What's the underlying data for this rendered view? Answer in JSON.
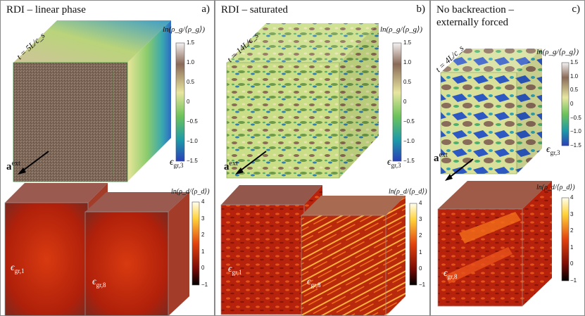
{
  "panels": {
    "a": {
      "title": "RDI – linear phase",
      "label": "a)",
      "time": "t = 5L/c_s",
      "gas_colorbar_label": "ln(ρ_g/⟨ρ_g⟩)",
      "gas_ticks": [
        "1.5",
        "1.0",
        "0.5",
        "0",
        "−0.5",
        "−1.0",
        "−1.5"
      ],
      "gas_epsilon": "ϵ",
      "gas_epsilon_sub": "gr,3",
      "dust_colorbar_label": "ln(ρ_d/⟨ρ_d⟩)",
      "dust_ticks": [
        "4",
        "3",
        "2",
        "1",
        "0",
        "−1"
      ],
      "dust_epsilons": [
        {
          "symbol": "ϵ",
          "sub": "gr,1"
        },
        {
          "symbol": "ϵ",
          "sub": "gr,8"
        }
      ],
      "accel_label": "a",
      "accel_sup": "ext"
    },
    "b": {
      "title": "RDI – saturated",
      "label": "b)",
      "time": "t = 14L/c_s",
      "gas_colorbar_label": "ln(ρ_g/⟨ρ_g⟩)",
      "gas_ticks": [
        "1.5",
        "1.0",
        "0.5",
        "0",
        "−0.5",
        "−1.0",
        "−1.5"
      ],
      "gas_epsilon": "ϵ",
      "gas_epsilon_sub": "gr,3",
      "dust_colorbar_label": "ln(ρ_d/⟨ρ_d⟩)",
      "dust_ticks": [
        "4",
        "3",
        "2",
        "1",
        "0",
        "−1"
      ],
      "dust_epsilons": [
        {
          "symbol": "ϵ",
          "sub": "gr,1"
        },
        {
          "symbol": "ϵ",
          "sub": "gr,8"
        }
      ],
      "accel_label": "a",
      "accel_sup": "ext"
    },
    "c": {
      "title_line1": "No backreaction –",
      "title_line2": "externally forced",
      "label": "c)",
      "time": "t = 4L/c_s",
      "gas_colorbar_label": "ln(ρ_g/⟨ρ_g⟩)",
      "gas_ticks": [
        "1.5",
        "1.0",
        "0.5",
        "0",
        "−0.5",
        "−1.0",
        "−1.5"
      ],
      "gas_epsilon": "ϵ",
      "gas_epsilon_sub": "gr,3",
      "dust_colorbar_label": "ln(ρ_d/⟨ρ_d⟩)",
      "dust_ticks": [
        "4",
        "3",
        "2",
        "1",
        "0",
        "−1"
      ],
      "dust_epsilons": [
        {
          "symbol": "ϵ",
          "sub": "gr,8"
        }
      ],
      "accel_label": "a",
      "accel_sup": "ext"
    }
  },
  "colors": {
    "gas_low": "#2b3fb8",
    "gas_mid_low": "#2ea35a",
    "gas_mid": "#e8e6a0",
    "gas_high": "#8a6a58",
    "gas_top": "#f4f2f2",
    "dust_low": "#000000",
    "dust_mid": "#b81a0a",
    "dust_high": "#ffd23a",
    "dust_top": "#ffffee",
    "border": "#8a8a8a"
  }
}
